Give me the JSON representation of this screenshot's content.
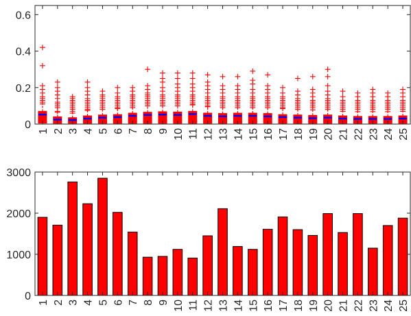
{
  "chart_data": [
    {
      "type": "box",
      "categories": [
        "1",
        "2",
        "3",
        "4",
        "5",
        "6",
        "7",
        "8",
        "9",
        "10",
        "11",
        "12",
        "13",
        "14",
        "15",
        "16",
        "17",
        "18",
        "19",
        "20",
        "21",
        "22",
        "23",
        "24",
        "25"
      ],
      "ylim": [
        0,
        0.65
      ],
      "yticks": [
        "0",
        "0.2",
        "0.4",
        "0.6"
      ],
      "ytick_values": [
        0,
        0.2,
        0.4,
        0.6
      ],
      "box_color": "#ff0000",
      "median_color": "#0000ff",
      "boxes": [
        {
          "q1": 0.005,
          "median": 0.052,
          "q3": 0.07,
          "upper_whisker": 0.11,
          "outliers": [
            0.12,
            0.13,
            0.14,
            0.15,
            0.17,
            0.19,
            0.21,
            0.32,
            0.42
          ]
        },
        {
          "q1": 0.004,
          "median": 0.025,
          "q3": 0.04,
          "upper_whisker": 0.065,
          "outliers": [
            0.07,
            0.09,
            0.1,
            0.11,
            0.12,
            0.14,
            0.16,
            0.18,
            0.2,
            0.23
          ]
        },
        {
          "q1": 0.004,
          "median": 0.022,
          "q3": 0.035,
          "upper_whisker": 0.06,
          "outliers": [
            0.07,
            0.08,
            0.09,
            0.1,
            0.11,
            0.12,
            0.13,
            0.14,
            0.15
          ]
        },
        {
          "q1": 0.004,
          "median": 0.03,
          "q3": 0.045,
          "upper_whisker": 0.075,
          "outliers": [
            0.08,
            0.09,
            0.1,
            0.11,
            0.12,
            0.13,
            0.14,
            0.16,
            0.18,
            0.2,
            0.23
          ]
        },
        {
          "q1": 0.004,
          "median": 0.035,
          "q3": 0.05,
          "upper_whisker": 0.08,
          "outliers": [
            0.09,
            0.1,
            0.11,
            0.12,
            0.13,
            0.14,
            0.15,
            0.16,
            0.18
          ]
        },
        {
          "q1": 0.004,
          "median": 0.038,
          "q3": 0.052,
          "upper_whisker": 0.085,
          "outliers": [
            0.09,
            0.1,
            0.11,
            0.12,
            0.13,
            0.14,
            0.15,
            0.17,
            0.2
          ]
        },
        {
          "q1": 0.004,
          "median": 0.045,
          "q3": 0.06,
          "upper_whisker": 0.09,
          "outliers": [
            0.1,
            0.11,
            0.12,
            0.13,
            0.14,
            0.15,
            0.16,
            0.18,
            0.2
          ]
        },
        {
          "q1": 0.004,
          "median": 0.05,
          "q3": 0.065,
          "upper_whisker": 0.1,
          "outliers": [
            0.11,
            0.12,
            0.13,
            0.14,
            0.15,
            0.16,
            0.17,
            0.19,
            0.21,
            0.3
          ]
        },
        {
          "q1": 0.004,
          "median": 0.052,
          "q3": 0.068,
          "upper_whisker": 0.1,
          "outliers": [
            0.11,
            0.12,
            0.13,
            0.14,
            0.15,
            0.16,
            0.18,
            0.2,
            0.23,
            0.25,
            0.28
          ]
        },
        {
          "q1": 0.004,
          "median": 0.05,
          "q3": 0.066,
          "upper_whisker": 0.1,
          "outliers": [
            0.11,
            0.12,
            0.13,
            0.14,
            0.15,
            0.16,
            0.18,
            0.2,
            0.22,
            0.25,
            0.28
          ]
        },
        {
          "q1": 0.004,
          "median": 0.055,
          "q3": 0.07,
          "upper_whisker": 0.105,
          "outliers": [
            0.11,
            0.12,
            0.13,
            0.14,
            0.15,
            0.16,
            0.18,
            0.2,
            0.22,
            0.25,
            0.28
          ]
        },
        {
          "q1": 0.004,
          "median": 0.045,
          "q3": 0.06,
          "upper_whisker": 0.095,
          "outliers": [
            0.1,
            0.11,
            0.12,
            0.13,
            0.14,
            0.15,
            0.17,
            0.19,
            0.21,
            0.23,
            0.27
          ]
        },
        {
          "q1": 0.004,
          "median": 0.042,
          "q3": 0.058,
          "upper_whisker": 0.09,
          "outliers": [
            0.1,
            0.11,
            0.12,
            0.13,
            0.14,
            0.15,
            0.17,
            0.19,
            0.21,
            0.26
          ]
        },
        {
          "q1": 0.004,
          "median": 0.045,
          "q3": 0.06,
          "upper_whisker": 0.09,
          "outliers": [
            0.1,
            0.11,
            0.12,
            0.13,
            0.14,
            0.15,
            0.17,
            0.19,
            0.21,
            0.26
          ]
        },
        {
          "q1": 0.004,
          "median": 0.045,
          "q3": 0.06,
          "upper_whisker": 0.09,
          "outliers": [
            0.1,
            0.11,
            0.12,
            0.13,
            0.14,
            0.15,
            0.17,
            0.19,
            0.22,
            0.24,
            0.29
          ]
        },
        {
          "q1": 0.004,
          "median": 0.042,
          "q3": 0.058,
          "upper_whisker": 0.09,
          "outliers": [
            0.1,
            0.11,
            0.12,
            0.13,
            0.14,
            0.15,
            0.17,
            0.19,
            0.21,
            0.27
          ]
        },
        {
          "q1": 0.004,
          "median": 0.038,
          "q3": 0.052,
          "upper_whisker": 0.085,
          "outliers": [
            0.09,
            0.1,
            0.11,
            0.12,
            0.13,
            0.14,
            0.15,
            0.17,
            0.2
          ]
        },
        {
          "q1": 0.004,
          "median": 0.035,
          "q3": 0.05,
          "upper_whisker": 0.08,
          "outliers": [
            0.09,
            0.1,
            0.11,
            0.12,
            0.13,
            0.14,
            0.16,
            0.18,
            0.25
          ]
        },
        {
          "q1": 0.004,
          "median": 0.032,
          "q3": 0.048,
          "upper_whisker": 0.078,
          "outliers": [
            0.09,
            0.1,
            0.11,
            0.12,
            0.13,
            0.15,
            0.17,
            0.19,
            0.26
          ]
        },
        {
          "q1": 0.004,
          "median": 0.035,
          "q3": 0.05,
          "upper_whisker": 0.08,
          "outliers": [
            0.09,
            0.1,
            0.11,
            0.12,
            0.13,
            0.14,
            0.16,
            0.18,
            0.21,
            0.26,
            0.3
          ]
        },
        {
          "q1": 0.004,
          "median": 0.03,
          "q3": 0.045,
          "upper_whisker": 0.07,
          "outliers": [
            0.08,
            0.09,
            0.1,
            0.11,
            0.12,
            0.13,
            0.15,
            0.18
          ]
        },
        {
          "q1": 0.004,
          "median": 0.028,
          "q3": 0.042,
          "upper_whisker": 0.068,
          "outliers": [
            0.08,
            0.09,
            0.1,
            0.11,
            0.12,
            0.13,
            0.15,
            0.17
          ]
        },
        {
          "q1": 0.004,
          "median": 0.028,
          "q3": 0.042,
          "upper_whisker": 0.068,
          "outliers": [
            0.08,
            0.09,
            0.1,
            0.11,
            0.12,
            0.13,
            0.15,
            0.17,
            0.19
          ]
        },
        {
          "q1": 0.004,
          "median": 0.028,
          "q3": 0.042,
          "upper_whisker": 0.068,
          "outliers": [
            0.08,
            0.09,
            0.1,
            0.11,
            0.12,
            0.13,
            0.15,
            0.17
          ]
        },
        {
          "q1": 0.004,
          "median": 0.03,
          "q3": 0.045,
          "upper_whisker": 0.07,
          "outliers": [
            0.08,
            0.09,
            0.1,
            0.11,
            0.12,
            0.13,
            0.15,
            0.17,
            0.19
          ]
        }
      ]
    },
    {
      "type": "bar",
      "categories": [
        "1",
        "2",
        "3",
        "4",
        "5",
        "6",
        "7",
        "8",
        "9",
        "10",
        "11",
        "12",
        "13",
        "14",
        "15",
        "16",
        "17",
        "18",
        "19",
        "20",
        "21",
        "22",
        "23",
        "24",
        "25"
      ],
      "values": [
        1900,
        1710,
        2760,
        2230,
        2850,
        2020,
        1540,
        930,
        950,
        1120,
        910,
        1450,
        2110,
        1190,
        1120,
        1610,
        1910,
        1600,
        1460,
        1990,
        1530,
        1990,
        1150,
        1700,
        1880
      ],
      "ylim": [
        0,
        3000
      ],
      "yticks": [
        "0",
        "1000",
        "2000",
        "3000"
      ],
      "ytick_values": [
        0,
        1000,
        2000,
        3000
      ],
      "bar_color": "#ff0000"
    }
  ]
}
